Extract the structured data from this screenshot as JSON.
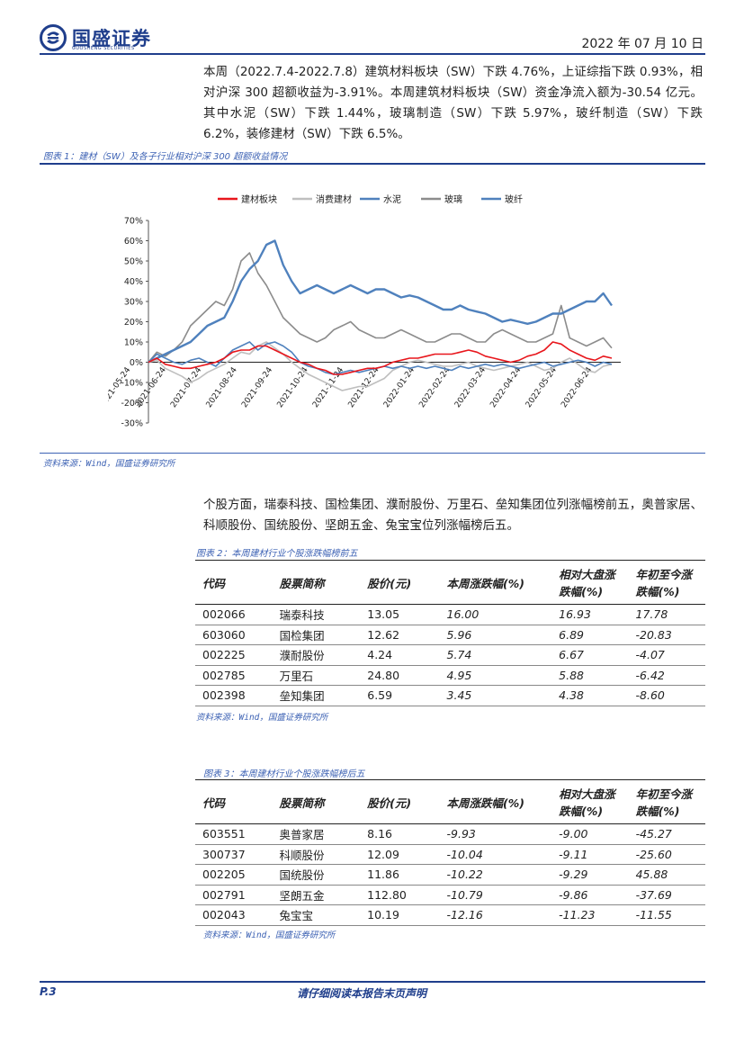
{
  "header": {
    "brand": "国盛证券",
    "brand_sub": "GUOSHENG SECURITIES",
    "date": "2022 年 07 月 10 日"
  },
  "intro_paragraph": "本周（2022.7.4-2022.7.8）建筑材料板块（SW）下跌 4.76%，上证综指下跌 0.93%，相对沪深 300 超额收益为-3.91%。本周建筑材料板块（SW）资金净流入额为-30.54 亿元。其中水泥（SW）下跌 1.44%，玻璃制造（SW）下跌 5.97%，玻纤制造（SW）下跌 6.2%，装修建材（SW）下跌 6.5%。",
  "figure1": {
    "title": "图表 1：建材（SW）及各子行业相对沪深 300 超额收益情况",
    "source": "资料来源：Wind，国盛证券研究所"
  },
  "chart_data": {
    "type": "line",
    "legend_position": "top",
    "grid": false,
    "y_tick_labels": [
      "70%",
      "60%",
      "50%",
      "40%",
      "30%",
      "20%",
      "10%",
      "0%",
      "-10%",
      "-20%",
      "-30%"
    ],
    "ylim": [
      -30,
      70
    ],
    "x_tick_labels": [
      "2021-05-24",
      "2021-06-24",
      "2021-07-24",
      "2021-08-24",
      "2021-09-24",
      "2021-10-24",
      "2021-11-24",
      "2021-12-24",
      "2022-01-24",
      "2022-02-24",
      "2022-03-24",
      "2022-04-24",
      "2022-05-24",
      "2022-06-24"
    ],
    "series": [
      {
        "name": "建材板块",
        "color": "#e8161c",
        "values": [
          0,
          2,
          -1,
          -2,
          -3,
          -3,
          -2,
          -1,
          0,
          2,
          5,
          6,
          6,
          8,
          8,
          6,
          4,
          2,
          0,
          -1,
          -3,
          -4,
          -6,
          -6,
          -5,
          -4,
          -3,
          -3,
          -2,
          0,
          1,
          2,
          2,
          3,
          4,
          4,
          4,
          5,
          6,
          5,
          3,
          2,
          1,
          0,
          1,
          3,
          4,
          6,
          10,
          9,
          6,
          4,
          2,
          1,
          3,
          2
        ]
      },
      {
        "name": "消费建材",
        "color": "#bfbfbf",
        "values": [
          0,
          1,
          -3,
          -5,
          -7,
          -10,
          -8,
          -5,
          -3,
          -1,
          2,
          5,
          4,
          8,
          10,
          7,
          4,
          0,
          -3,
          -6,
          -8,
          -10,
          -12,
          -14,
          -13,
          -12,
          -12,
          -10,
          -8,
          -4,
          -2,
          0,
          1,
          0,
          -1,
          -2,
          -2,
          -1,
          0,
          -2,
          -3,
          -4,
          -3,
          -2,
          -1,
          0,
          -2,
          -4,
          -3,
          0,
          2,
          -1,
          -4,
          -5,
          -2,
          -1
        ]
      },
      {
        "name": "水泥",
        "color": "#4f81bd",
        "values": [
          0,
          4,
          2,
          0,
          -1,
          1,
          2,
          0,
          -2,
          2,
          6,
          8,
          10,
          6,
          9,
          10,
          8,
          5,
          0,
          -2,
          -3,
          -5,
          -6,
          -5,
          -4,
          -5,
          -4,
          -3,
          -2,
          -3,
          -2,
          -3,
          -2,
          -3,
          -2,
          -3,
          -4,
          -2,
          -3,
          -2,
          -1,
          -2,
          -1,
          -2,
          -3,
          -2,
          -1,
          0,
          -2,
          -1,
          0,
          1,
          0,
          -2,
          0,
          -1
        ]
      },
      {
        "name": "玻璃",
        "color": "#8c8c8c",
        "values": [
          0,
          5,
          3,
          6,
          10,
          18,
          22,
          26,
          30,
          28,
          36,
          50,
          54,
          44,
          38,
          30,
          22,
          18,
          14,
          12,
          10,
          12,
          16,
          18,
          20,
          16,
          14,
          12,
          12,
          14,
          16,
          14,
          12,
          10,
          10,
          12,
          14,
          14,
          12,
          10,
          10,
          14,
          16,
          14,
          12,
          10,
          10,
          12,
          14,
          28,
          12,
          10,
          8,
          10,
          12,
          7
        ]
      },
      {
        "name": "玻纤",
        "color": "#4f81bd",
        "values": [
          0,
          2,
          4,
          6,
          8,
          10,
          14,
          18,
          20,
          22,
          30,
          40,
          46,
          50,
          58,
          60,
          48,
          40,
          34,
          36,
          38,
          36,
          34,
          36,
          38,
          36,
          34,
          36,
          36,
          34,
          32,
          33,
          32,
          30,
          28,
          26,
          26,
          28,
          26,
          25,
          24,
          22,
          20,
          21,
          20,
          19,
          20,
          22,
          24,
          24,
          26,
          28,
          30,
          30,
          34,
          28
        ]
      }
    ]
  },
  "table2": {
    "title": "图表 2：本周建材行业个股涨跌幅榜前五",
    "headers": [
      "代码",
      "股票简称",
      "股价(元)",
      "本周涨跌幅(%)",
      "相对大盘涨跌幅(%)",
      "年初至今涨跌幅(%)"
    ],
    "rows": [
      [
        "002066",
        "瑞泰科技",
        "13.05",
        "16.00",
        "16.93",
        "17.78"
      ],
      [
        "603060",
        "国检集团",
        "12.62",
        "5.96",
        "6.89",
        "-20.83"
      ],
      [
        "002225",
        "濮耐股份",
        "4.24",
        "5.74",
        "6.67",
        "-4.07"
      ],
      [
        "002785",
        "万里石",
        "24.80",
        "4.95",
        "5.88",
        "-6.42"
      ],
      [
        "002398",
        "垒知集团",
        "6.59",
        "3.45",
        "4.38",
        "-8.60"
      ]
    ],
    "source": "资料来源：Wind，国盛证券研究所"
  },
  "paragraph2": "个股方面，瑞泰科技、国检集团、濮耐股份、万里石、垒知集团位列涨幅榜前五，奥普家居、科顺股份、国统股份、坚朗五金、兔宝宝位列涨幅榜后五。",
  "table3": {
    "title": "图表 3：本周建材行业个股涨跌幅榜后五",
    "headers": [
      "代码",
      "股票简称",
      "股价(元)",
      "本周涨跌幅(%)",
      "相对大盘涨跌幅(%)",
      "年初至今涨跌幅(%)"
    ],
    "rows": [
      [
        "603551",
        "奥普家居",
        "8.16",
        "-9.93",
        "-9.00",
        "-45.27"
      ],
      [
        "300737",
        "科顺股份",
        "12.09",
        "-10.04",
        "-9.11",
        "-25.60"
      ],
      [
        "002205",
        "国统股份",
        "11.86",
        "-10.22",
        "-9.29",
        "45.88"
      ],
      [
        "002791",
        "坚朗五金",
        "112.80",
        "-10.79",
        "-9.86",
        "-37.69"
      ],
      [
        "002043",
        "兔宝宝",
        "10.19",
        "-12.16",
        "-11.23",
        "-11.55"
      ]
    ],
    "source": "资料来源：Wind，国盛证券研究所"
  },
  "footer": {
    "page": "P.3",
    "disclaimer": "请仔细阅读本报告末页声明"
  }
}
